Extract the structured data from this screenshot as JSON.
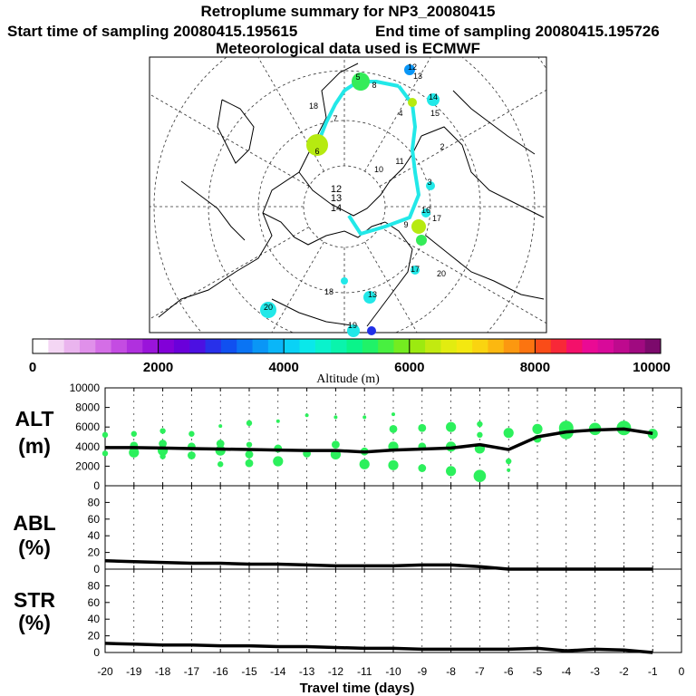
{
  "header": {
    "title": "Retroplume summary for NP3_20080415",
    "start_label": "Start time of sampling 20080415.195615",
    "end_label": "End time of sampling 20080415.195726",
    "met_label": "Meteorological data used is ECMWF"
  },
  "colorbar": {
    "ticks": [
      "0",
      "2000",
      "4000",
      "6000",
      "8000",
      "10000"
    ],
    "label": "Altitude (m)",
    "colors": [
      "#ffffff",
      "#f4d6f4",
      "#eab4ee",
      "#e090ea",
      "#d46ee6",
      "#c44ce2",
      "#b030de",
      "#9a14da",
      "#8200d8",
      "#6a00da",
      "#4c10e2",
      "#2830ea",
      "#1050f0",
      "#0a74f4",
      "#0a96f6",
      "#0ab6f8",
      "#0ad2f6",
      "#0ae8ea",
      "#0af2cc",
      "#0af4ac",
      "#0af48a",
      "#20f268",
      "#48f040",
      "#74ec20",
      "#9cea10",
      "#c2ea10",
      "#e2ec10",
      "#f4e810",
      "#fad410",
      "#fcb810",
      "#fc9810",
      "#fc7410",
      "#fa4c18",
      "#f82838",
      "#f4106a",
      "#ea0a94",
      "#d80a9a",
      "#be0a8e",
      "#a00a80",
      "#7c0a6c"
    ]
  },
  "map": {
    "center_labels": [
      "12",
      "13",
      "14"
    ],
    "labels": [
      "12",
      "13",
      "14",
      "15",
      "2",
      "3",
      "4",
      "5",
      "6",
      "7",
      "8",
      "9",
      "10",
      "11",
      "16",
      "17",
      "18",
      "19",
      "20",
      "18",
      "13",
      "17",
      "20"
    ]
  },
  "chart_data": [
    {
      "type": "line",
      "title": "ALT (m)",
      "ylabel_lines": [
        "ALT",
        "(m)"
      ],
      "yticks": [
        "10000",
        "8000",
        "6000",
        "4000",
        "2000",
        "0"
      ],
      "ylim": [
        0,
        10000
      ],
      "xlim": [
        -20,
        0
      ],
      "median": {
        "x": [
          -20,
          -19,
          -18,
          -17,
          -16,
          -15,
          -14,
          -13,
          -12,
          -11,
          -10,
          -9,
          -8,
          -7,
          -6,
          -5,
          -4,
          -3,
          -2,
          -1
        ],
        "y": [
          3900,
          3900,
          3850,
          3800,
          3750,
          3700,
          3650,
          3600,
          3600,
          3450,
          3650,
          3750,
          3850,
          4200,
          3700,
          5000,
          5500,
          5700,
          5800,
          5350
        ]
      },
      "scatter": {
        "x": [
          -20,
          -20,
          -19,
          -19,
          -19,
          -18,
          -18,
          -18,
          -18,
          -17,
          -17,
          -17,
          -16,
          -16,
          -16,
          -16,
          -15,
          -15,
          -15,
          -15,
          -14,
          -14,
          -14,
          -13,
          -13,
          -12,
          -12,
          -12,
          -11,
          -11,
          -11,
          -10,
          -10,
          -10,
          -10,
          -9,
          -9,
          -9,
          -9,
          -8,
          -8,
          -8,
          -7,
          -7,
          -7,
          -7,
          -6,
          -6,
          -6,
          -5,
          -5,
          -4,
          -4,
          -3,
          -2,
          -1
        ],
        "y": [
          5200,
          3300,
          5300,
          4100,
          3400,
          5600,
          4300,
          3600,
          3000,
          5300,
          4000,
          3100,
          6100,
          4300,
          3600,
          2200,
          6400,
          4200,
          3200,
          2300,
          6600,
          3800,
          2500,
          7200,
          3300,
          7000,
          4200,
          3200,
          7000,
          3500,
          2200,
          7300,
          5800,
          4000,
          2100,
          5900,
          4000,
          1800,
          5900,
          4000,
          1500,
          6000,
          3800,
          1000,
          5200,
          6300,
          5400,
          2500,
          1600,
          5800,
          4800,
          5900,
          5500,
          5800,
          5900,
          5300
        ],
        "size": [
          2,
          2,
          2,
          3,
          4,
          2,
          3,
          4,
          2,
          2,
          3,
          3,
          1,
          3,
          4,
          2,
          2,
          2,
          3,
          3,
          1,
          3,
          4,
          1,
          3,
          1,
          3,
          4,
          1,
          3,
          4,
          1,
          3,
          4,
          4,
          3,
          3,
          3,
          2,
          4,
          4,
          4,
          4,
          5,
          2,
          2,
          4,
          2,
          1,
          4,
          3,
          6,
          6,
          5,
          6,
          4
        ]
      }
    },
    {
      "type": "line",
      "title": "ABL (%)",
      "ylabel_lines": [
        "ABL",
        "(%)"
      ],
      "yticks": [
        "80",
        "60",
        "40",
        "20",
        "0"
      ],
      "ylim": [
        0,
        100
      ],
      "xlim": [
        -20,
        0
      ],
      "x": [
        -20,
        -19,
        -18,
        -17,
        -16,
        -15,
        -14,
        -13,
        -12,
        -11,
        -10,
        -9,
        -8,
        -7,
        -6,
        -5,
        -4,
        -3,
        -2,
        -1
      ],
      "y": [
        10,
        9,
        8,
        7,
        7,
        6,
        6,
        5,
        4,
        4,
        4,
        5,
        5,
        3,
        0,
        0,
        0,
        0,
        0,
        0
      ]
    },
    {
      "type": "line",
      "title": "STR (%)",
      "ylabel_lines": [
        "STR",
        "(%)"
      ],
      "yticks": [
        "80",
        "60",
        "40",
        "20",
        "0"
      ],
      "ylim": [
        0,
        100
      ],
      "xlim": [
        -20,
        0
      ],
      "xticks": [
        "-20",
        "-19",
        "-18",
        "-17",
        "-16",
        "-15",
        "-14",
        "-13",
        "-12",
        "-11",
        "-10",
        "-9",
        "-8",
        "-7",
        "-6",
        "-5",
        "-4",
        "-3",
        "-2",
        "-1",
        "0"
      ],
      "xlabel": "Travel time (days)",
      "x": [
        -20,
        -19,
        -18,
        -17,
        -16,
        -15,
        -14,
        -13,
        -12,
        -11,
        -10,
        -9,
        -8,
        -7,
        -6,
        -5,
        -4,
        -3,
        -2,
        -1
      ],
      "y": [
        11,
        10,
        9,
        9,
        8,
        8,
        7,
        7,
        6,
        5,
        5,
        4,
        4,
        4,
        4,
        5,
        2,
        4,
        3,
        0
      ]
    }
  ]
}
